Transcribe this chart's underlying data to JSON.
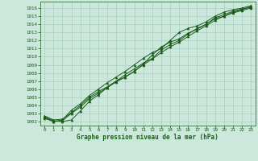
{
  "title": "Graphe pression niveau de la mer (hPa)",
  "background_color": "#cce8dd",
  "grid_color": "#aacfbf",
  "line_color": "#1a5c1a",
  "marker_color": "#1a5c1a",
  "xlim": [
    -0.5,
    23.5
  ],
  "ylim": [
    1001.5,
    1016.8
  ],
  "xticks": [
    0,
    1,
    2,
    3,
    4,
    5,
    6,
    7,
    8,
    9,
    10,
    11,
    12,
    13,
    14,
    15,
    16,
    17,
    18,
    19,
    20,
    21,
    22,
    23
  ],
  "yticks": [
    1002,
    1003,
    1004,
    1005,
    1006,
    1007,
    1008,
    1009,
    1010,
    1011,
    1012,
    1013,
    1014,
    1015,
    1016
  ],
  "series": [
    [
      1002.6,
      1002.1,
      1002.0,
      1002.2,
      1003.3,
      1004.5,
      1005.3,
      1006.2,
      1007.0,
      1007.8,
      1008.5,
      1009.2,
      1009.8,
      1010.8,
      1011.5,
      1012.0,
      1012.8,
      1013.5,
      1014.0,
      1014.7,
      1015.0,
      1015.5,
      1015.8,
      1016.2
    ],
    [
      1002.7,
      1002.2,
      1002.3,
      1003.1,
      1004.0,
      1005.0,
      1005.7,
      1006.3,
      1007.0,
      1007.5,
      1008.2,
      1009.1,
      1010.2,
      1011.2,
      1011.8,
      1012.2,
      1012.9,
      1013.4,
      1014.0,
      1014.8,
      1015.2,
      1015.6,
      1015.9,
      1016.1
    ],
    [
      1002.5,
      1002.0,
      1002.2,
      1003.4,
      1004.2,
      1005.2,
      1006.0,
      1006.8,
      1007.5,
      1008.2,
      1009.0,
      1009.8,
      1010.5,
      1011.0,
      1012.0,
      1013.0,
      1013.5,
      1013.8,
      1014.3,
      1015.0,
      1015.5,
      1015.8,
      1016.0,
      1016.3
    ],
    [
      1002.4,
      1002.0,
      1002.1,
      1003.0,
      1003.8,
      1004.8,
      1005.5,
      1006.2,
      1006.9,
      1007.5,
      1008.2,
      1009.0,
      1009.7,
      1010.5,
      1011.2,
      1011.8,
      1012.5,
      1013.2,
      1013.8,
      1014.5,
      1015.0,
      1015.4,
      1015.7,
      1016.0
    ]
  ]
}
